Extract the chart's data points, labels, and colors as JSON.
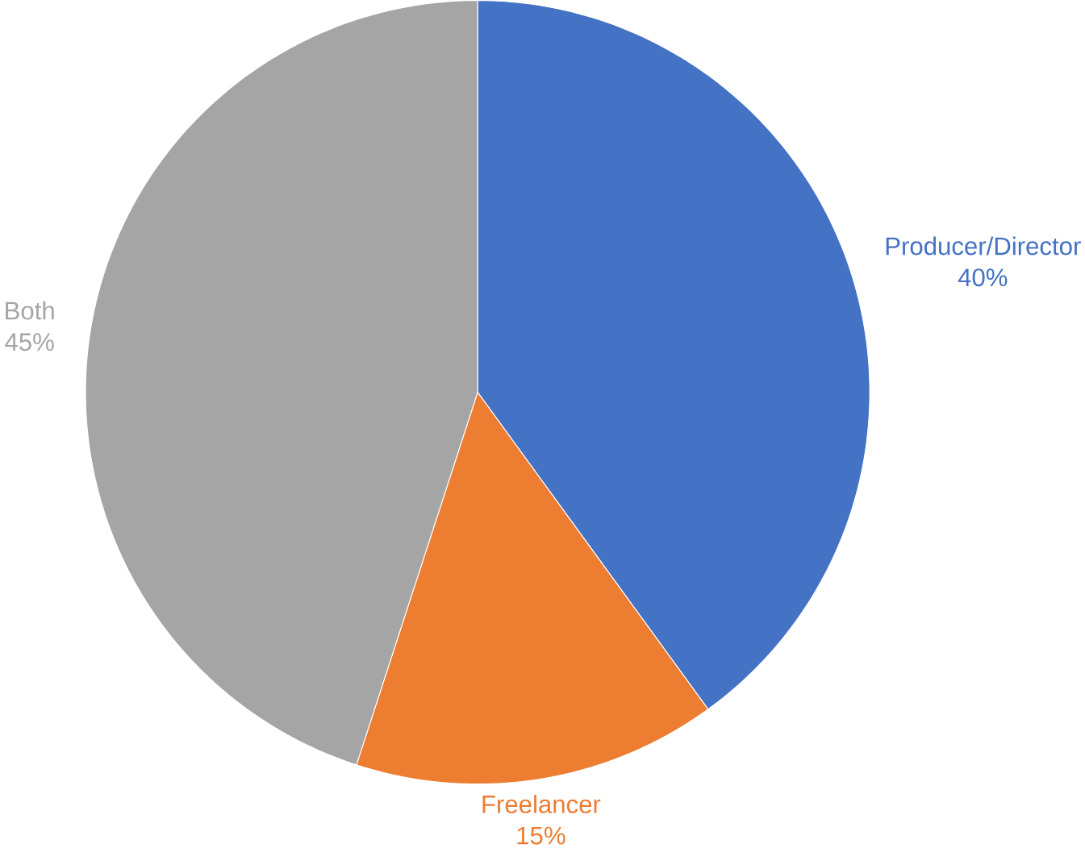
{
  "chart_data": {
    "type": "pie",
    "categories": [
      "Producer/Director",
      "Freelancer",
      "Both"
    ],
    "values": [
      40,
      15,
      45
    ],
    "colors": [
      "#4472c4",
      "#ed7d31",
      "#a5a5a5"
    ],
    "value_labels": [
      "40%",
      "15%",
      "45%"
    ]
  }
}
